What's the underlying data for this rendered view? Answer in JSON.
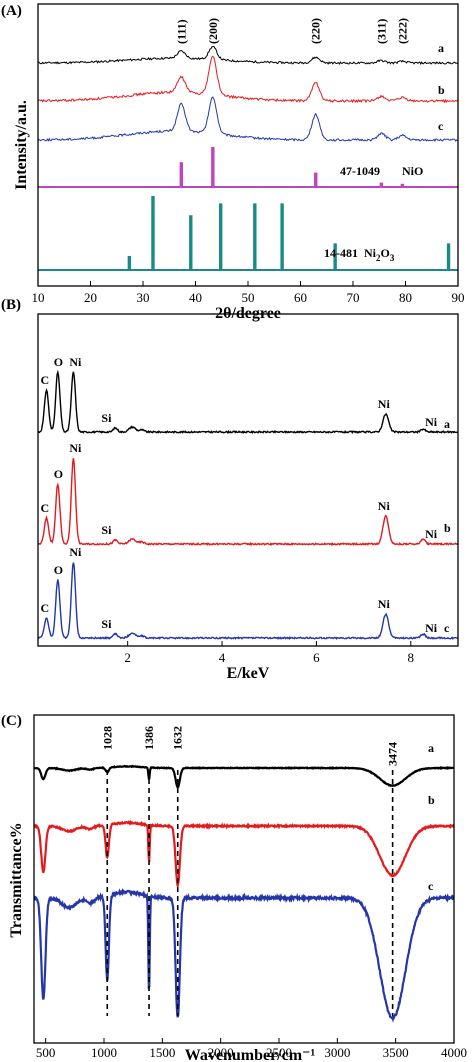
{
  "chart_data": [
    {
      "id": "A",
      "panel_label": "(A)",
      "type": "line",
      "xlabel": "2θ/degree",
      "ylabel": "Intensity/a.u.",
      "xlim": [
        10,
        90
      ],
      "xticks": [
        10,
        20,
        30,
        40,
        50,
        60,
        70,
        80,
        90
      ],
      "peak_labels": [
        {
          "text": "(111)",
          "x": 37.3
        },
        {
          "text": "(200)",
          "x": 43.3
        },
        {
          "text": "(220)",
          "x": 62.9
        },
        {
          "text": "(311)",
          "x": 75.4
        },
        {
          "text": "(222)",
          "x": 79.4
        }
      ],
      "series": [
        {
          "label": "a",
          "color": "#000000",
          "peaks": [
            [
              37.3,
              0.18
            ],
            [
              43.3,
              0.32
            ],
            [
              62.9,
              0.14
            ],
            [
              75.4,
              0.06
            ],
            [
              79.4,
              0.04
            ]
          ],
          "hump": 0.12,
          "noise": 0.05
        },
        {
          "label": "b",
          "color": "#e41a1c",
          "peaks": [
            [
              37.3,
              0.38
            ],
            [
              43.3,
              0.95
            ],
            [
              62.9,
              0.45
            ],
            [
              75.4,
              0.12
            ],
            [
              79.4,
              0.08
            ]
          ],
          "hump": 0.22,
          "noise": 0.06
        },
        {
          "label": "c",
          "color": "#2536a8",
          "peaks": [
            [
              37.3,
              0.75
            ],
            [
              43.3,
              1.0
            ],
            [
              62.9,
              0.7
            ],
            [
              75.4,
              0.18
            ],
            [
              79.4,
              0.12
            ]
          ],
          "hump": 0.25,
          "noise": 0.06
        }
      ],
      "references": [
        {
          "card": "47-1049",
          "phase": "NiO",
          "color": "#c043c0",
          "sticks": [
            [
              37.3,
              0.62
            ],
            [
              43.3,
              1.0
            ],
            [
              62.9,
              0.36
            ],
            [
              75.4,
              0.11
            ],
            [
              79.4,
              0.08
            ]
          ]
        },
        {
          "card": "14-481",
          "phase": "Ni",
          "phase_sub1": "2",
          "phase_mid": "O",
          "phase_sub2": "3",
          "color": "#1a8a86",
          "sticks": [
            [
              27.4,
              0.19
            ],
            [
              31.9,
              1.0
            ],
            [
              39.1,
              0.74
            ],
            [
              44.8,
              0.9
            ],
            [
              51.3,
              0.9
            ],
            [
              56.5,
              0.9
            ],
            [
              66.6,
              0.36
            ],
            [
              88.2,
              0.36
            ]
          ]
        }
      ]
    },
    {
      "id": "B",
      "panel_label": "(B)",
      "type": "line",
      "xlabel": "E/keV",
      "xlim": [
        0.1,
        9
      ],
      "xticks": [
        2,
        4,
        6,
        8
      ],
      "element_peaks": {
        "C": 0.28,
        "O": 0.52,
        "Ni_L": 0.85,
        "Si": 1.74,
        "Ni_Ka": 7.47,
        "Ni_Kb": 8.26
      },
      "series": [
        {
          "label": "a",
          "color": "#000000",
          "heights": {
            "C": 0.42,
            "O": 0.6,
            "Ni_L": 0.6,
            "Si": 0.04,
            "Ni_Ka": 0.18,
            "Ni_Kb": 0.03
          },
          "annotations": [
            "C",
            "O",
            "Ni",
            "Si",
            "Ni",
            "Ni"
          ]
        },
        {
          "label": "b",
          "color": "#e41a1c",
          "heights": {
            "C": 0.26,
            "O": 0.6,
            "Ni_L": 0.86,
            "Si": 0.04,
            "Ni_Ka": 0.28,
            "Ni_Kb": 0.05
          },
          "annotations": [
            "C",
            "O",
            "Ni",
            "Si",
            "Ni",
            "Ni"
          ]
        },
        {
          "label": "c",
          "color": "#2536a8",
          "heights": {
            "C": 0.2,
            "O": 0.58,
            "Ni_L": 0.76,
            "Si": 0.04,
            "Ni_Ka": 0.24,
            "Ni_Kb": 0.04
          },
          "annotations": [
            "C",
            "O",
            "Ni",
            "Si",
            "Ni",
            "Ni"
          ]
        }
      ]
    },
    {
      "id": "C",
      "panel_label": "(C)",
      "type": "line",
      "xlabel": "Wavenumber/cm⁻¹",
      "ylabel": "Transmittance%",
      "xlim": [
        400,
        4000
      ],
      "xticks": [
        500,
        1000,
        1500,
        2000,
        2500,
        3000,
        3500,
        4000
      ],
      "band_labels": [
        {
          "text": "1028",
          "x": 1028
        },
        {
          "text": "1386",
          "x": 1386
        },
        {
          "text": "1632",
          "x": 1632
        },
        {
          "text": "3474",
          "x": 3474
        }
      ],
      "series": [
        {
          "label": "a",
          "color": "#000000",
          "bands": [
            [
              480,
              0.35
            ],
            [
              1028,
              0.15
            ],
            [
              1386,
              0.35
            ],
            [
              1632,
              0.6
            ],
            [
              3474,
              0.55
            ]
          ]
        },
        {
          "label": "b",
          "color": "#e41a1c",
          "bands": [
            [
              480,
              0.7
            ],
            [
              1028,
              0.5
            ],
            [
              1386,
              0.55
            ],
            [
              1632,
              0.9
            ],
            [
              3474,
              0.75
            ]
          ]
        },
        {
          "label": "c",
          "color": "#2536a8",
          "bands": [
            [
              480,
              0.85
            ],
            [
              1028,
              0.7
            ],
            [
              1386,
              0.8
            ],
            [
              1632,
              1.0
            ],
            [
              3474,
              1.0
            ]
          ]
        }
      ]
    }
  ]
}
